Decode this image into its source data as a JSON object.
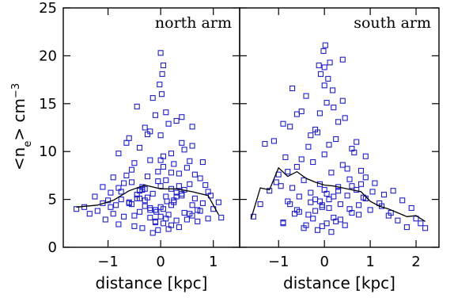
{
  "chart_data": [
    {
      "type": "scatter",
      "title": "north arm",
      "xlabel": "distance [kpc]",
      "ylabel": "<n_e> cm^-3",
      "xlim": [
        -1.85,
        1.5
      ],
      "ylim": [
        0,
        25
      ],
      "xticks": [
        -1,
        0,
        1
      ],
      "xtick_labels": [
        "−1",
        "0",
        "1"
      ],
      "yticks": [
        0,
        5,
        10,
        15,
        20,
        25
      ],
      "ytick_labels": [
        "0",
        "5",
        "10",
        "15",
        "20",
        "25"
      ],
      "marker": "open-square",
      "marker_color": "#1f1fc8",
      "points": {
        "x": [
          -1.6,
          -1.45,
          -1.35,
          -1.25,
          -1.2,
          -1.1,
          -1.05,
          -1.0,
          -0.95,
          -0.9,
          -0.85,
          -0.8,
          -0.8,
          -0.75,
          -0.7,
          -0.65,
          -0.6,
          -0.55,
          -0.5,
          -0.5,
          -0.45,
          -0.4,
          -0.4,
          -0.35,
          -0.3,
          -0.3,
          -0.25,
          -0.2,
          -0.2,
          -0.15,
          -0.1,
          -0.1,
          -0.05,
          0.0,
          0.0,
          0.02,
          0.05,
          0.1,
          0.1,
          0.15,
          0.2,
          0.2,
          0.25,
          0.3,
          0.3,
          0.35,
          0.4,
          0.4,
          0.45,
          0.5,
          0.55,
          0.6,
          0.6,
          0.65,
          0.7,
          0.75,
          0.8,
          0.85,
          0.9,
          1.0,
          1.1,
          1.15,
          -0.65,
          -0.55,
          -0.45,
          -0.35,
          -0.25,
          -0.15,
          -0.05,
          0.05,
          0.15,
          0.25,
          0.35,
          0.45,
          0.55,
          0.65,
          -0.8,
          -0.6,
          -0.4,
          -0.2,
          0.0,
          0.2,
          0.4,
          0.6,
          0.8,
          -0.3,
          0.0,
          0.3,
          -0.1,
          0.1,
          -0.5,
          0.5,
          -0.2,
          0.2,
          -0.7,
          0.7,
          -0.9,
          0.9,
          -1.1,
          -0.35,
          0.35,
          -0.05,
          0.05,
          -0.15,
          0.15,
          -0.45,
          0.45,
          -0.25,
          0.25,
          0.0,
          0.05,
          -0.08,
          0.12,
          -0.55,
          0.55,
          -0.75,
          0.75,
          -0.95,
          0.95,
          -0.6,
          0.6,
          -0.3,
          0.3,
          0.1,
          -0.1,
          0.2,
          -0.2,
          0.4,
          -0.4,
          0.0,
          0.05,
          0.03,
          -0.02
        ],
        "y": [
          4.0,
          4.2,
          3.5,
          5.3,
          3.8,
          4.6,
          2.9,
          4.9,
          5.7,
          3.5,
          4.4,
          6.2,
          2.4,
          5.8,
          3.2,
          7.5,
          4.7,
          6.8,
          2.2,
          8.8,
          5.1,
          3.7,
          10.4,
          6.0,
          4.3,
          12.5,
          7.4,
          3.1,
          9.1,
          5.6,
          13.8,
          2.6,
          6.9,
          4.2,
          11.7,
          16.0,
          8.4,
          5.3,
          14.1,
          3.4,
          9.8,
          6.1,
          4.9,
          13.2,
          2.8,
          7.7,
          5.4,
          10.9,
          3.6,
          8.3,
          6.6,
          4.4,
          12.6,
          5.1,
          3.9,
          7.2,
          4.6,
          6.5,
          5.8,
          4.0,
          4.7,
          3.1,
          10.9,
          8.1,
          14.7,
          6.3,
          11.8,
          15.6,
          7.9,
          9.5,
          12.9,
          8.7,
          6.4,
          10.2,
          9.0,
          7.6,
          9.8,
          11.4,
          5.9,
          12.1,
          6.4,
          7.8,
          13.6,
          10.6,
          8.9,
          4.9,
          9.1,
          5.7,
          3.9,
          7.0,
          3.3,
          2.9,
          4.1,
          2.3,
          6.7,
          2.7,
          7.3,
          3.0,
          6.3,
          2.0,
          2.1,
          1.8,
          2.5,
          1.5,
          1.9,
          5.5,
          6.0,
          5.2,
          4.7,
          3.2,
          4.0,
          3.7,
          4.8,
          4.5,
          3.5,
          5.0,
          3.8,
          4.2,
          5.4,
          4.6,
          3.3,
          6.1,
          5.3,
          3.0,
          2.7,
          4.4,
          3.9,
          5.6,
          5.1,
          20.3,
          19.0,
          18.1,
          17.0
        ]
      },
      "trend_line": {
        "x": [
          -1.6,
          -1.2,
          -0.9,
          -0.6,
          -0.3,
          0.0,
          0.3,
          0.6,
          0.9,
          1.1
        ],
        "y": [
          4.2,
          4.4,
          4.9,
          5.9,
          6.5,
          6.1,
          6.1,
          5.8,
          5.4,
          3.4
        ]
      }
    },
    {
      "type": "scatter",
      "title": "south arm",
      "xlabel": "distance [kpc]",
      "ylabel": "",
      "xlim": [
        -1.85,
        2.5
      ],
      "ylim": [
        0,
        25
      ],
      "xticks": [
        -1,
        0,
        1,
        2
      ],
      "xtick_labels": [
        "−1",
        "0",
        "1",
        "2"
      ],
      "yticks": [
        0,
        5,
        10,
        15,
        20,
        25
      ],
      "marker": "open-square",
      "marker_color": "#1f1fc8",
      "points": {
        "x": [
          -1.55,
          -1.4,
          -1.3,
          -1.2,
          -1.1,
          -1.0,
          -0.95,
          -0.9,
          -0.85,
          -0.8,
          -0.75,
          -0.7,
          -0.65,
          -0.6,
          -0.55,
          -0.5,
          -0.45,
          -0.4,
          -0.35,
          -0.3,
          -0.25,
          -0.2,
          -0.15,
          -0.1,
          -0.05,
          0.0,
          0.05,
          0.1,
          0.15,
          0.2,
          0.25,
          0.3,
          0.35,
          0.4,
          0.45,
          0.5,
          0.55,
          0.6,
          0.65,
          0.7,
          0.75,
          0.8,
          0.85,
          0.9,
          1.0,
          1.1,
          1.2,
          1.3,
          1.4,
          1.5,
          1.6,
          1.7,
          1.8,
          1.9,
          2.0,
          2.1,
          2.2,
          -0.9,
          -0.7,
          -0.5,
          -0.3,
          -0.1,
          0.1,
          0.3,
          0.5,
          0.7,
          0.9,
          -0.6,
          -0.4,
          -0.2,
          0.0,
          0.2,
          0.4,
          0.6,
          -0.8,
          -0.25,
          0.25,
          0.8,
          -0.45,
          0.45,
          -0.15,
          0.15,
          -0.35,
          0.35,
          -0.05,
          0.05,
          -0.55,
          0.55,
          -0.75,
          0.75,
          -1.05,
          1.05,
          1.25,
          1.45,
          -0.2,
          0.2,
          -0.1,
          0.1,
          0.0,
          0.05,
          -0.05,
          0.3,
          -0.3,
          0.6,
          -0.6,
          0.9,
          -0.9,
          0.02,
          -0.02,
          0.12,
          0.4,
          -0.12,
          0.0,
          0.08,
          -0.08,
          0.18
        ],
        "y": [
          3.2,
          4.5,
          10.8,
          5.9,
          11.1,
          7.6,
          6.4,
          2.5,
          9.4,
          4.8,
          12.6,
          6.2,
          3.5,
          8.4,
          5.3,
          14.2,
          7.0,
          2.3,
          10.5,
          5.7,
          8.9,
          3.8,
          12.0,
          6.6,
          4.2,
          9.7,
          15.1,
          5.0,
          7.8,
          3.1,
          11.3,
          6.3,
          4.5,
          8.6,
          13.5,
          5.4,
          7.1,
          3.6,
          9.9,
          6.0,
          4.4,
          8.0,
          5.2,
          7.3,
          3.9,
          6.7,
          4.6,
          5.5,
          3.3,
          5.9,
          2.8,
          4.9,
          2.1,
          4.1,
          3.0,
          2.5,
          2.0,
          12.9,
          16.6,
          9.2,
          11.7,
          14.0,
          10.7,
          13.1,
          8.2,
          11.0,
          9.5,
          13.9,
          15.8,
          12.3,
          16.9,
          14.6,
          15.3,
          10.3,
          7.9,
          3.0,
          2.7,
          6.6,
          2.0,
          2.3,
          1.8,
          1.6,
          3.4,
          2.9,
          2.2,
          2.5,
          3.7,
          4.0,
          4.5,
          3.4,
          6.8,
          5.8,
          4.3,
          3.6,
          5.0,
          5.3,
          4.8,
          4.1,
          6.0,
          5.6,
          4.4,
          5.9,
          4.7,
          6.4,
          3.9,
          5.1,
          2.6,
          21.1,
          20.5,
          19.3,
          19.6,
          19.0,
          18.8,
          17.6,
          18.1,
          16.4
        ]
      },
      "trend_line": {
        "x": [
          -1.6,
          -1.4,
          -1.2,
          -1.0,
          -0.8,
          -0.6,
          -0.4,
          -0.2,
          0.0,
          0.2,
          0.4,
          0.6,
          0.8,
          1.0,
          1.2,
          1.4,
          1.6,
          1.8,
          2.0,
          2.2
        ],
        "y": [
          3.0,
          6.2,
          6.0,
          8.3,
          7.4,
          7.9,
          7.2,
          6.8,
          6.5,
          6.4,
          6.2,
          6.0,
          5.8,
          4.8,
          4.3,
          4.0,
          3.6,
          3.2,
          3.3,
          2.7
        ]
      }
    }
  ]
}
